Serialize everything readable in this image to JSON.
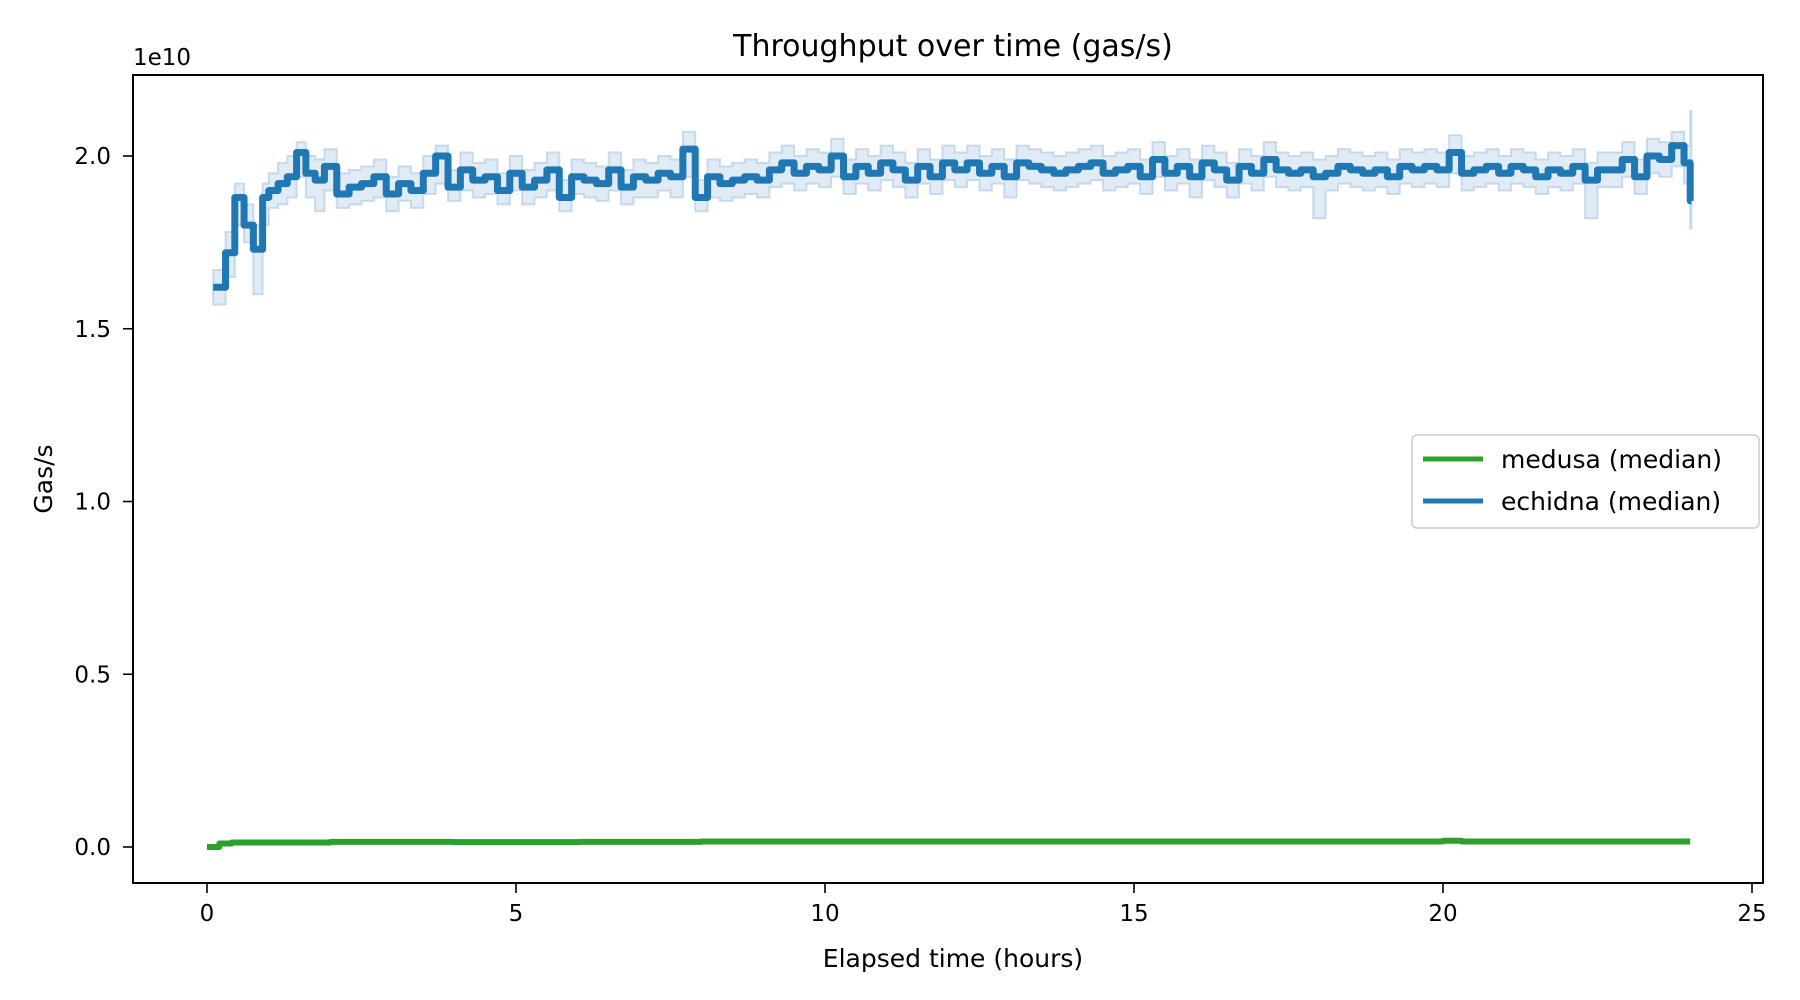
{
  "chart_data": {
    "type": "line",
    "title": "Throughput over time (gas/s)",
    "xlabel": "Elapsed time (hours)",
    "ylabel": "Gas/s",
    "y_offset_label": "1e10",
    "xlim": [
      -1.2,
      25.4
    ],
    "ylim": [
      -1000000000.0,
      22200000000.0
    ],
    "xticks": [
      0,
      5,
      10,
      15,
      20,
      25
    ],
    "xtick_labels": [
      "0",
      "5",
      "10",
      "15",
      "20",
      "25"
    ],
    "yticks": [
      0,
      0.5,
      1.0,
      1.5,
      2.0
    ],
    "ytick_labels": [
      "0.0",
      "0.5",
      "1.0",
      "1.5",
      "2.0"
    ],
    "grid": false,
    "legend_position": "center right",
    "drawstyle": "steps-post",
    "series": [
      {
        "name": "medusa (median)",
        "color": "#2ca02c",
        "x": [
          0.0,
          0.2,
          0.4,
          2.0,
          4.0,
          6.0,
          8.0,
          10.0,
          12.0,
          14.0,
          16.0,
          18.0,
          20.0,
          20.3,
          22.0,
          24.0
        ],
        "values": [
          0.0,
          0.01,
          0.013,
          0.015,
          0.014,
          0.015,
          0.016,
          0.016,
          0.016,
          0.016,
          0.016,
          0.016,
          0.018,
          0.016,
          0.016,
          0.016
        ]
      },
      {
        "name": "echidna (median)",
        "color": "#1f77b4",
        "band_color": "#c6dbef",
        "x": [
          0.1,
          0.3,
          0.45,
          0.6,
          0.75,
          0.9,
          1.0,
          1.15,
          1.3,
          1.45,
          1.6,
          1.75,
          1.9,
          2.1,
          2.3,
          2.5,
          2.7,
          2.9,
          3.1,
          3.3,
          3.5,
          3.7,
          3.9,
          4.1,
          4.3,
          4.5,
          4.7,
          4.9,
          5.1,
          5.3,
          5.5,
          5.7,
          5.9,
          6.1,
          6.3,
          6.5,
          6.7,
          6.9,
          7.1,
          7.3,
          7.5,
          7.7,
          7.9,
          8.1,
          8.3,
          8.5,
          8.7,
          8.9,
          9.1,
          9.3,
          9.5,
          9.7,
          9.9,
          10.1,
          10.3,
          10.5,
          10.7,
          10.9,
          11.1,
          11.3,
          11.5,
          11.7,
          11.9,
          12.1,
          12.3,
          12.5,
          12.7,
          12.9,
          13.1,
          13.3,
          13.5,
          13.7,
          13.9,
          14.1,
          14.3,
          14.5,
          14.7,
          14.9,
          15.1,
          15.3,
          15.5,
          15.7,
          15.9,
          16.1,
          16.3,
          16.5,
          16.7,
          16.9,
          17.1,
          17.3,
          17.5,
          17.7,
          17.9,
          18.1,
          18.3,
          18.5,
          18.7,
          18.9,
          19.1,
          19.3,
          19.5,
          19.7,
          19.9,
          20.1,
          20.3,
          20.5,
          20.7,
          20.9,
          21.1,
          21.3,
          21.5,
          21.7,
          21.9,
          22.1,
          22.3,
          22.5,
          22.7,
          22.9,
          23.1,
          23.3,
          23.5,
          23.7,
          23.9,
          24.0
        ],
        "values": [
          1.62,
          1.72,
          1.88,
          1.8,
          1.73,
          1.88,
          1.9,
          1.92,
          1.94,
          2.01,
          1.95,
          1.93,
          1.97,
          1.89,
          1.91,
          1.92,
          1.94,
          1.89,
          1.92,
          1.9,
          1.95,
          2.0,
          1.91,
          1.96,
          1.93,
          1.94,
          1.9,
          1.95,
          1.91,
          1.93,
          1.96,
          1.88,
          1.94,
          1.93,
          1.92,
          1.96,
          1.91,
          1.94,
          1.93,
          1.95,
          1.94,
          2.02,
          1.88,
          1.94,
          1.92,
          1.93,
          1.94,
          1.93,
          1.96,
          1.98,
          1.95,
          1.97,
          1.96,
          2.0,
          1.94,
          1.97,
          1.95,
          1.98,
          1.96,
          1.93,
          1.97,
          1.94,
          1.98,
          1.96,
          1.98,
          1.95,
          1.97,
          1.94,
          1.98,
          1.97,
          1.96,
          1.95,
          1.96,
          1.97,
          1.98,
          1.95,
          1.96,
          1.97,
          1.94,
          1.99,
          1.95,
          1.97,
          1.94,
          1.98,
          1.96,
          1.93,
          1.97,
          1.95,
          1.99,
          1.96,
          1.95,
          1.96,
          1.94,
          1.95,
          1.97,
          1.96,
          1.95,
          1.96,
          1.94,
          1.97,
          1.96,
          1.97,
          1.96,
          2.01,
          1.95,
          1.96,
          1.97,
          1.95,
          1.97,
          1.96,
          1.94,
          1.96,
          1.95,
          1.97,
          1.93,
          1.96,
          1.96,
          1.99,
          1.94,
          2.0,
          1.99,
          2.03,
          1.98,
          1.87
        ],
        "band_low": [
          1.57,
          1.65,
          1.8,
          1.75,
          1.6,
          1.8,
          1.85,
          1.86,
          1.88,
          1.94,
          1.88,
          1.84,
          1.9,
          1.85,
          1.86,
          1.87,
          1.88,
          1.84,
          1.87,
          1.85,
          1.89,
          1.92,
          1.87,
          1.9,
          1.88,
          1.89,
          1.86,
          1.9,
          1.86,
          1.88,
          1.9,
          1.84,
          1.89,
          1.88,
          1.87,
          1.9,
          1.86,
          1.88,
          1.88,
          1.9,
          1.88,
          1.94,
          1.84,
          1.88,
          1.87,
          1.88,
          1.89,
          1.88,
          1.91,
          1.92,
          1.9,
          1.92,
          1.91,
          1.94,
          1.89,
          1.92,
          1.9,
          1.93,
          1.91,
          1.88,
          1.92,
          1.89,
          1.93,
          1.91,
          1.93,
          1.9,
          1.92,
          1.88,
          1.93,
          1.92,
          1.91,
          1.9,
          1.91,
          1.92,
          1.93,
          1.9,
          1.91,
          1.92,
          1.89,
          1.94,
          1.9,
          1.92,
          1.88,
          1.93,
          1.91,
          1.88,
          1.92,
          1.9,
          1.94,
          1.91,
          1.9,
          1.91,
          1.82,
          1.9,
          1.92,
          1.91,
          1.9,
          1.91,
          1.89,
          1.92,
          1.91,
          1.92,
          1.91,
          1.95,
          1.9,
          1.91,
          1.92,
          1.9,
          1.92,
          1.91,
          1.89,
          1.91,
          1.9,
          1.92,
          1.82,
          1.91,
          1.91,
          1.94,
          1.89,
          1.95,
          1.94,
          1.97,
          1.92,
          1.79
        ],
        "band_high": [
          1.67,
          1.78,
          1.92,
          1.86,
          1.8,
          1.92,
          1.95,
          1.98,
          2.0,
          2.04,
          2.0,
          1.99,
          2.02,
          1.95,
          1.96,
          1.97,
          1.99,
          1.94,
          1.97,
          1.95,
          2.0,
          2.03,
          1.96,
          2.01,
          1.98,
          1.99,
          1.95,
          2.0,
          1.96,
          1.98,
          2.01,
          1.93,
          1.99,
          1.98,
          1.97,
          2.01,
          1.96,
          1.99,
          1.98,
          2.0,
          1.99,
          2.07,
          1.93,
          1.99,
          1.97,
          1.98,
          1.99,
          1.98,
          2.01,
          2.03,
          2.0,
          2.02,
          2.01,
          2.05,
          1.99,
          2.02,
          2.0,
          2.03,
          2.01,
          1.98,
          2.02,
          1.99,
          2.03,
          2.01,
          2.03,
          2.0,
          2.02,
          1.99,
          2.03,
          2.02,
          2.01,
          2.0,
          2.01,
          2.02,
          2.03,
          2.0,
          2.01,
          2.02,
          1.99,
          2.04,
          2.0,
          2.02,
          1.99,
          2.03,
          2.01,
          1.98,
          2.02,
          2.0,
          2.04,
          2.01,
          2.0,
          2.01,
          1.99,
          2.0,
          2.02,
          2.01,
          2.0,
          2.01,
          1.99,
          2.02,
          2.01,
          2.02,
          2.01,
          2.06,
          2.0,
          2.01,
          2.02,
          2.0,
          2.02,
          2.01,
          1.99,
          2.01,
          2.0,
          2.02,
          1.98,
          2.01,
          2.01,
          2.04,
          1.99,
          2.05,
          2.04,
          2.07,
          2.03,
          2.13
        ]
      }
    ]
  }
}
